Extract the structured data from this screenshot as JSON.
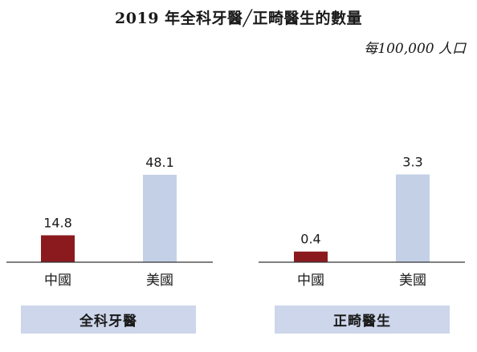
{
  "title": "2019 年全科牙醫╱正畸醫生的數量",
  "subtitle": "每100,000 人口",
  "colors": {
    "china": "#8b1a1f",
    "usa": "#c4d0e6",
    "panel": "#cdd6ea",
    "axis": "#333333"
  },
  "chart_data": [
    {
      "type": "bar",
      "panel_label": "全科牙醫",
      "categories": [
        "中國",
        "美國"
      ],
      "values": [
        14.8,
        48.1
      ],
      "value_labels": [
        "14.8",
        "48.1"
      ],
      "ylim": [
        0,
        60
      ]
    },
    {
      "type": "bar",
      "panel_label": "正畸醫生",
      "categories": [
        "中國",
        "美國"
      ],
      "values": [
        0.4,
        3.3
      ],
      "value_labels": [
        "0.4",
        "3.3"
      ],
      "ylim": [
        0,
        4.1
      ]
    }
  ]
}
